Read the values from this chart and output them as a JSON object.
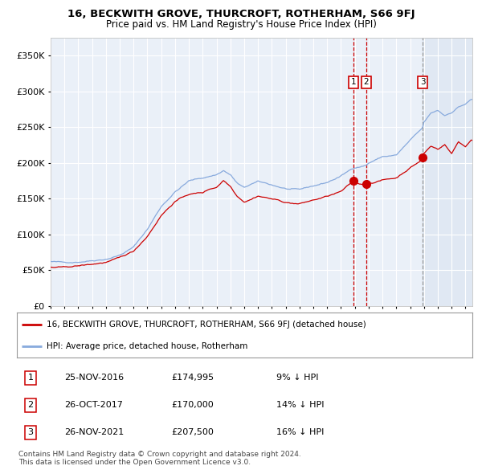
{
  "title": "16, BECKWITH GROVE, THURCROFT, ROTHERHAM, S66 9FJ",
  "subtitle": "Price paid vs. HM Land Registry's House Price Index (HPI)",
  "legend_red": "16, BECKWITH GROVE, THURCROFT, ROTHERHAM, S66 9FJ (detached house)",
  "legend_blue": "HPI: Average price, detached house, Rotherham",
  "footer": "Contains HM Land Registry data © Crown copyright and database right 2024.\nThis data is licensed under the Open Government Licence v3.0.",
  "transactions": [
    {
      "num": 1,
      "date": "25-NOV-2016",
      "year": 2016.9,
      "price": 174995,
      "pct": "9% ↓ HPI"
    },
    {
      "num": 2,
      "date": "26-OCT-2017",
      "year": 2017.82,
      "price": 170000,
      "pct": "14% ↓ HPI"
    },
    {
      "num": 3,
      "date": "26-NOV-2021",
      "year": 2021.9,
      "price": 207500,
      "pct": "16% ↓ HPI"
    }
  ],
  "yticks": [
    0,
    50000,
    100000,
    150000,
    200000,
    250000,
    300000,
    350000
  ],
  "ylim": [
    0,
    375000
  ],
  "xlim_start": 1995.0,
  "xlim_end": 2025.5,
  "background_color": "#ffffff",
  "plot_bg_color": "#eaf0f8",
  "grid_color": "#ffffff",
  "red_line_color": "#cc0000",
  "blue_line_color": "#88aadd",
  "vline_red_color": "#cc0000",
  "vline_gray_color": "#999999",
  "shade_color": "#dde5f2",
  "hpi_keypoints": [
    [
      1995.0,
      62000
    ],
    [
      1996.0,
      60000
    ],
    [
      1997.0,
      62000
    ],
    [
      1998.0,
      65000
    ],
    [
      1999.0,
      68000
    ],
    [
      2000.0,
      74000
    ],
    [
      2001.0,
      85000
    ],
    [
      2002.0,
      110000
    ],
    [
      2003.0,
      142000
    ],
    [
      2004.0,
      163000
    ],
    [
      2005.0,
      178000
    ],
    [
      2006.0,
      182000
    ],
    [
      2007.0,
      187000
    ],
    [
      2007.5,
      193000
    ],
    [
      2008.0,
      187000
    ],
    [
      2008.5,
      175000
    ],
    [
      2009.0,
      168000
    ],
    [
      2009.5,
      173000
    ],
    [
      2010.0,
      176000
    ],
    [
      2011.0,
      171000
    ],
    [
      2012.0,
      166000
    ],
    [
      2013.0,
      163000
    ],
    [
      2014.0,
      168000
    ],
    [
      2015.0,
      173000
    ],
    [
      2016.0,
      182000
    ],
    [
      2016.9,
      193000
    ],
    [
      2017.0,
      194000
    ],
    [
      2017.82,
      198000
    ],
    [
      2018.0,
      201000
    ],
    [
      2019.0,
      210000
    ],
    [
      2020.0,
      212000
    ],
    [
      2021.0,
      232000
    ],
    [
      2021.9,
      248000
    ],
    [
      2022.0,
      256000
    ],
    [
      2022.5,
      268000
    ],
    [
      2023.0,
      272000
    ],
    [
      2023.5,
      265000
    ],
    [
      2024.0,
      270000
    ],
    [
      2024.5,
      278000
    ],
    [
      2025.0,
      282000
    ],
    [
      2025.4,
      288000
    ]
  ],
  "red_keypoints": [
    [
      1995.0,
      54000
    ],
    [
      1996.0,
      53000
    ],
    [
      1997.0,
      55000
    ],
    [
      1998.0,
      57000
    ],
    [
      1999.0,
      60000
    ],
    [
      2000.0,
      65000
    ],
    [
      2001.0,
      74000
    ],
    [
      2002.0,
      96000
    ],
    [
      2003.0,
      126000
    ],
    [
      2004.0,
      146000
    ],
    [
      2005.0,
      156000
    ],
    [
      2006.0,
      158000
    ],
    [
      2006.5,
      163000
    ],
    [
      2007.0,
      166000
    ],
    [
      2007.5,
      176000
    ],
    [
      2008.0,
      168000
    ],
    [
      2008.5,
      155000
    ],
    [
      2009.0,
      148000
    ],
    [
      2009.5,
      152000
    ],
    [
      2010.0,
      157000
    ],
    [
      2011.0,
      153000
    ],
    [
      2012.0,
      148000
    ],
    [
      2013.0,
      146000
    ],
    [
      2014.0,
      151000
    ],
    [
      2015.0,
      156000
    ],
    [
      2016.0,
      162000
    ],
    [
      2016.9,
      174995
    ],
    [
      2017.0,
      173000
    ],
    [
      2017.82,
      170000
    ],
    [
      2018.0,
      173000
    ],
    [
      2019.0,
      178000
    ],
    [
      2020.0,
      181000
    ],
    [
      2021.0,
      196000
    ],
    [
      2021.9,
      207500
    ],
    [
      2022.0,
      216000
    ],
    [
      2022.5,
      226000
    ],
    [
      2023.0,
      222000
    ],
    [
      2023.5,
      229000
    ],
    [
      2024.0,
      216000
    ],
    [
      2024.5,
      233000
    ],
    [
      2025.0,
      226000
    ],
    [
      2025.4,
      236000
    ]
  ]
}
